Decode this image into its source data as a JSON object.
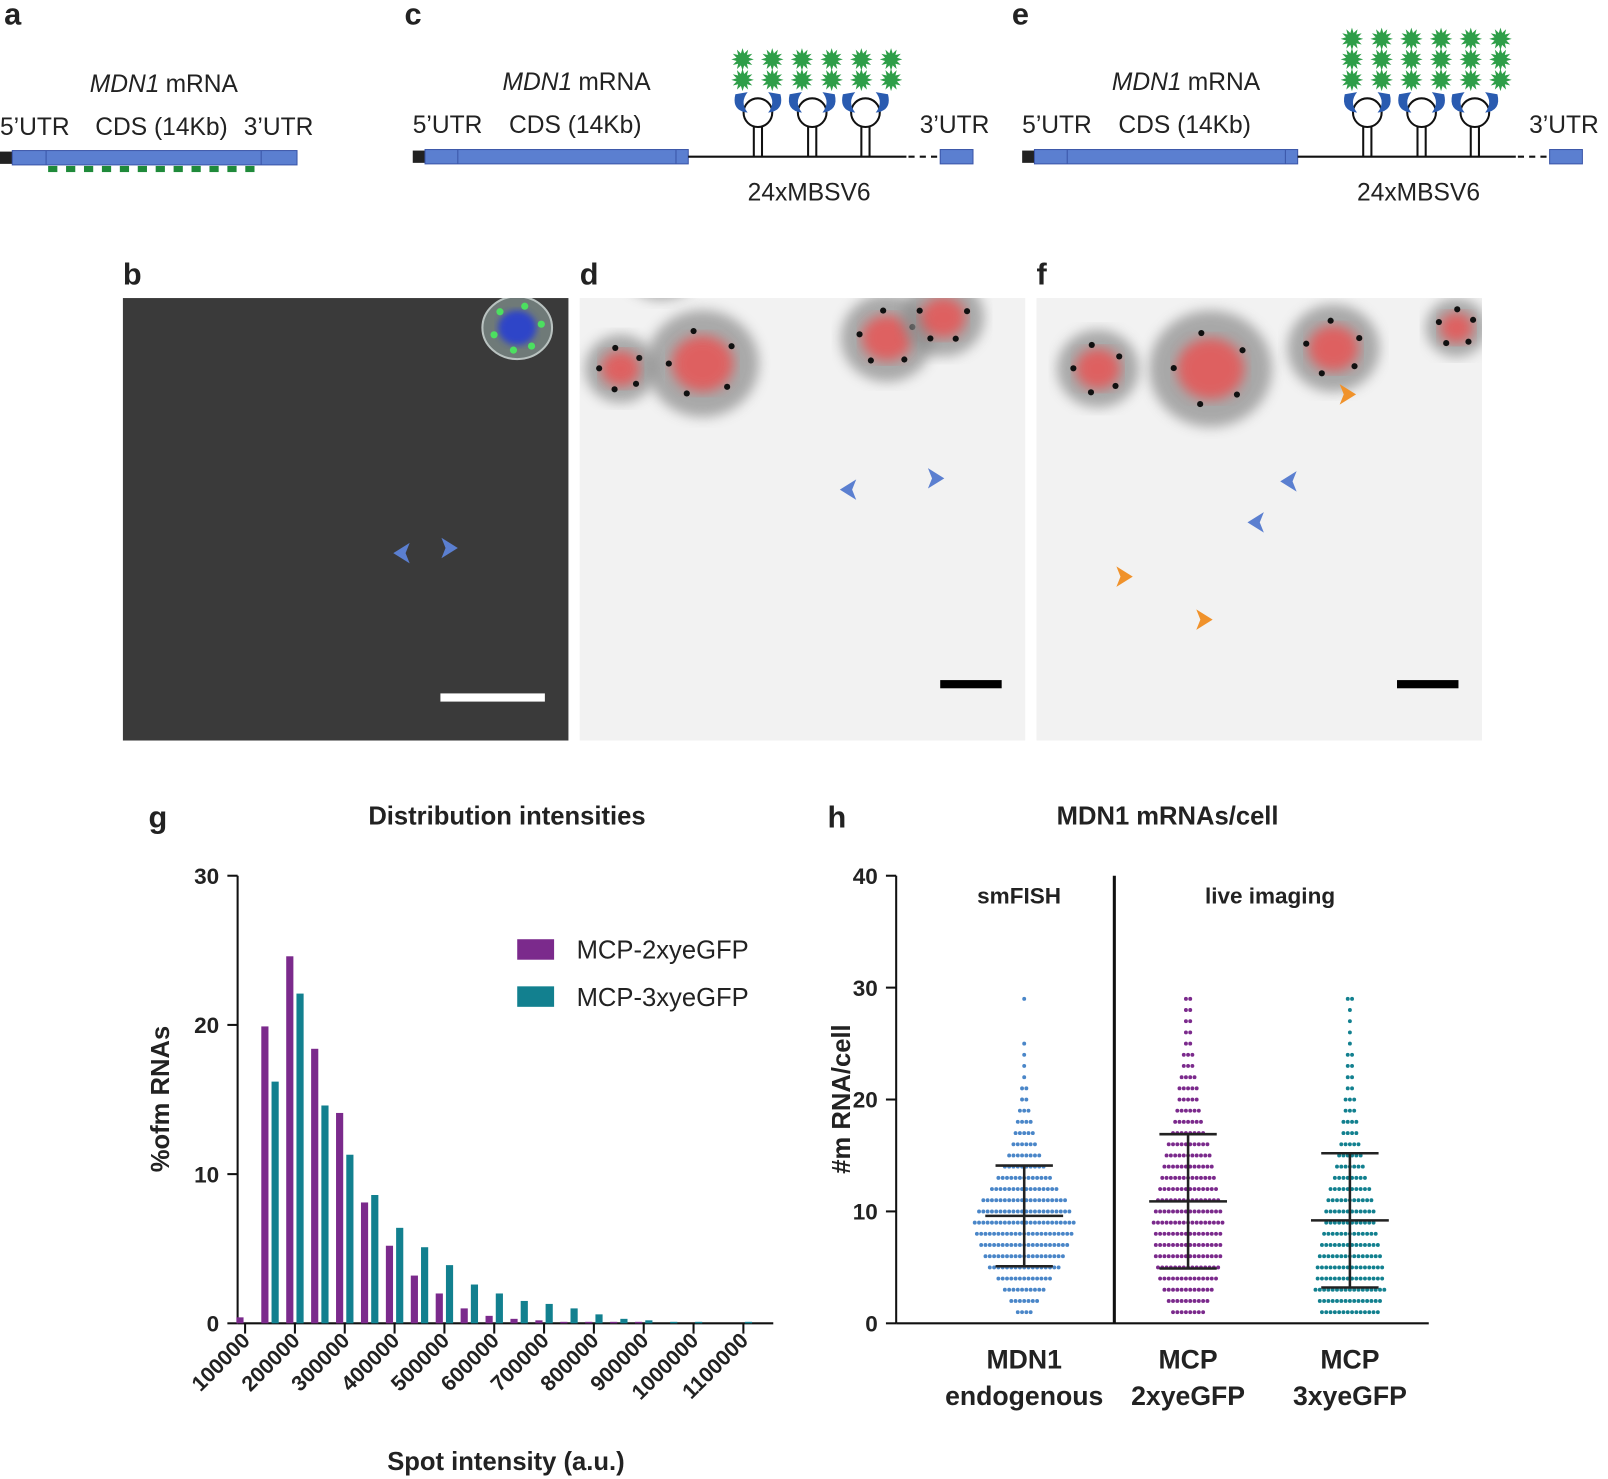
{
  "panel_labels": {
    "a": "a",
    "b": "b",
    "c": "c",
    "d": "d",
    "e": "e",
    "f": "f",
    "g": "g",
    "h": "h"
  },
  "diagrams": {
    "a": {
      "gene": "MDN1",
      "mrna": "mRNA",
      "utr5": "5’UTR",
      "cds": "CDS (14Kb)",
      "utr3": "3’UTR"
    },
    "c": {
      "gene": "MDN1",
      "mrna": "mRNA",
      "utr5": "5’UTR",
      "cds": "CDS (14Kb)",
      "utr3": "3’UTR",
      "tag": "24xMBSV6"
    },
    "e": {
      "gene": "MDN1",
      "mrna": "mRNA",
      "utr5": "5’UTR",
      "cds": "CDS (14Kb)",
      "utr3": "3’UTR",
      "tag": "24xMBSV6"
    }
  },
  "chart_data": [
    {
      "type": "bar",
      "title": "Distribution intensities",
      "x_label": "Spot intensity (a.u.)",
      "y_label": "%ofm RNAs",
      "x": [
        100000,
        150000,
        200000,
        250000,
        300000,
        350000,
        400000,
        450000,
        500000,
        550000,
        600000,
        650000,
        700000,
        750000,
        800000,
        850000,
        900000,
        950000,
        1000000,
        1050000,
        1100000
      ],
      "series": [
        {
          "name": "MCP-2xyeGFP",
          "color": "#7b2a8c",
          "values": [
            0.4,
            19.9,
            24.6,
            18.4,
            14.1,
            8.1,
            5.2,
            3.2,
            2.0,
            1.0,
            0.5,
            0.3,
            0.2,
            0.1,
            0.1,
            0.1,
            0.1,
            0,
            0,
            0,
            0
          ]
        },
        {
          "name": "MCP-3xyeGFP",
          "color": "#12808f",
          "values": [
            0,
            16.2,
            22.1,
            14.6,
            11.3,
            8.6,
            6.4,
            5.1,
            3.9,
            2.6,
            2.0,
            1.5,
            1.3,
            1.0,
            0.6,
            0.3,
            0.2,
            0.1,
            0.1,
            0,
            0.1
          ]
        }
      ],
      "xlim": [
        85000,
        1160000
      ],
      "xticks": [
        100000,
        200000,
        300000,
        400000,
        500000,
        600000,
        700000,
        800000,
        900000,
        1000000,
        1100000
      ],
      "ylim": [
        0,
        30
      ],
      "yticks": [
        0,
        10,
        20,
        30
      ],
      "legend": "upper right"
    },
    {
      "type": "dot",
      "title": "MDN1 mRNAs/cell",
      "y_label": "#m RNA/cell",
      "group_labels": [
        "smFISH",
        "live imaging"
      ],
      "categories": [
        [
          "MDN1",
          "endogenous"
        ],
        [
          "MCP",
          "2xyeGFP"
        ],
        [
          "MCP",
          "3xyeGFP"
        ]
      ],
      "levels": [
        1,
        2,
        3,
        4,
        5,
        6,
        7,
        8,
        9,
        10,
        11,
        12,
        13,
        14,
        15,
        16,
        17,
        18,
        19,
        20,
        21,
        22,
        23,
        24,
        25,
        26,
        27,
        28,
        29
      ],
      "series": [
        {
          "color": "#4a86c8",
          "mean": 9.6,
          "sd": 4.5,
          "counts": [
            4,
            7,
            10,
            13,
            17,
            19,
            21,
            23,
            24,
            22,
            20,
            16,
            13,
            10,
            8,
            6,
            5,
            4,
            3,
            2,
            2,
            1,
            1,
            1,
            1,
            0,
            0,
            0,
            1
          ]
        },
        {
          "color": "#7b2a8c",
          "mean": 10.9,
          "sd": 6.0,
          "counts": [
            8,
            10,
            12,
            14,
            15,
            16,
            16,
            16,
            17,
            16,
            15,
            14,
            13,
            12,
            11,
            10,
            8,
            7,
            6,
            5,
            5,
            4,
            3,
            3,
            2,
            2,
            2,
            2,
            2
          ]
        },
        {
          "color": "#12808f",
          "mean": 9.2,
          "sd": 6.0,
          "counts": [
            14,
            15,
            17,
            16,
            16,
            15,
            14,
            13,
            12,
            12,
            11,
            10,
            8,
            7,
            6,
            5,
            4,
            4,
            3,
            3,
            2,
            2,
            2,
            2,
            1,
            1,
            1,
            1,
            2
          ]
        }
      ],
      "ylim": [
        0,
        40
      ],
      "yticks": [
        0,
        10,
        20,
        30,
        40
      ]
    }
  ]
}
